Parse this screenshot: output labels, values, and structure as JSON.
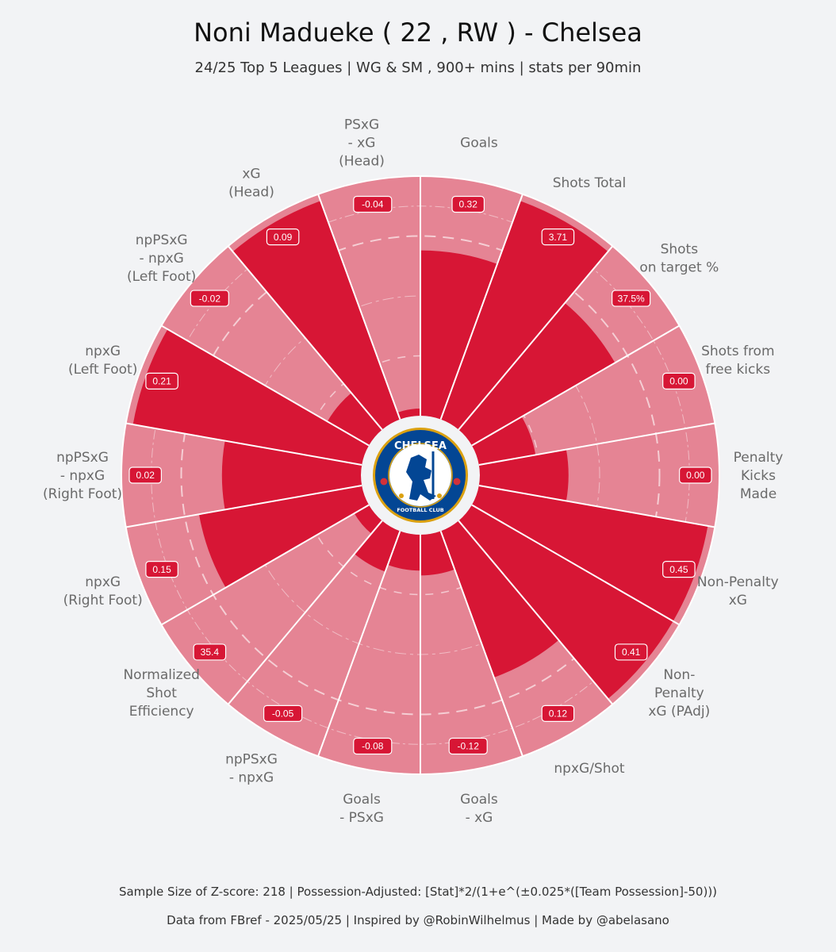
{
  "title": "Noni Madueke  ( 22 , RW ) - Chelsea",
  "subtitle": "24/25 Top 5 Leagues | WG & SM , 900+ mins | stats per 90min",
  "footer": {
    "line1": "Sample Size of Z-score:  218   |  Possession-Adjusted: [Stat]*2/(1+e^(±0.025*([Team Possession]-50)))",
    "line2": "Data from  FBref  - 2025/05/25  |  Inspired by @RobinWilhelmus  |  Made by @abelasano"
  },
  "logo": {
    "top_text": "CHELSEA",
    "bottom_text": "FOOTBALL CLUB",
    "colors": {
      "blue": "#034694",
      "gold": "#dba111",
      "red": "#d1313a"
    }
  },
  "colors": {
    "background": "#f2f3f5",
    "slice_fill": "#d71635",
    "slice_bg": "#e58494",
    "label_bg": "#d71635"
  },
  "chart_data": {
    "type": "pizza",
    "percentile_range": [
      0,
      100
    ],
    "parameters": [
      {
        "label": [
          "Goals"
        ],
        "value": "0.32",
        "percentile": 69
      },
      {
        "label": [
          "Shots Total"
        ],
        "value": "3.71",
        "percentile": 97
      },
      {
        "label": [
          "Shots",
          "on target %"
        ],
        "value": "37.5%",
        "percentile": 69
      },
      {
        "label": [
          "Shots from",
          "free kicks"
        ],
        "value": "0.00",
        "percentile": 24
      },
      {
        "label": [
          "Penalty",
          "Kicks",
          "Made"
        ],
        "value": "0.00",
        "percentile": 37
      },
      {
        "label": [
          "Non-Penalty",
          "xG"
        ],
        "value": "0.45",
        "percentile": 97
      },
      {
        "label": [
          "Non-",
          "Penalty",
          "xG (PAdj)"
        ],
        "value": "0.41",
        "percentile": 97
      },
      {
        "label": [
          "npxG/Shot"
        ],
        "value": "0.12",
        "percentile": 65
      },
      {
        "label": [
          "Goals",
          "- xG"
        ],
        "value": "-0.12",
        "percentile": 17
      },
      {
        "label": [
          "Goals",
          "- PSxG"
        ],
        "value": "-0.08",
        "percentile": 15
      },
      {
        "label": [
          "npPSxG",
          "- npxG"
        ],
        "value": "-0.05",
        "percentile": 18
      },
      {
        "label": [
          "Normalized",
          "Shot",
          "Efficiency"
        ],
        "value": "35.4",
        "percentile": 7
      },
      {
        "label": [
          "npxG",
          "(Right Foot)"
        ],
        "value": "0.15",
        "percentile": 69
      },
      {
        "label": [
          "npPSxG",
          "- npxG",
          "(Right Foot)"
        ],
        "value": "0.02",
        "percentile": 58
      },
      {
        "label": [
          "npxG",
          "(Left Foot)"
        ],
        "value": "0.21",
        "percentile": 97
      },
      {
        "label": [
          "npPSxG",
          "- npxG",
          "(Left Foot)"
        ],
        "value": "-0.02",
        "percentile": 20
      },
      {
        "label": [
          "xG",
          "(Head)"
        ],
        "value": "0.09",
        "percentile": 97
      },
      {
        "label": [
          "PSxG",
          "- xG",
          "(Head)"
        ],
        "value": "-0.04",
        "percentile": 3
      }
    ]
  }
}
